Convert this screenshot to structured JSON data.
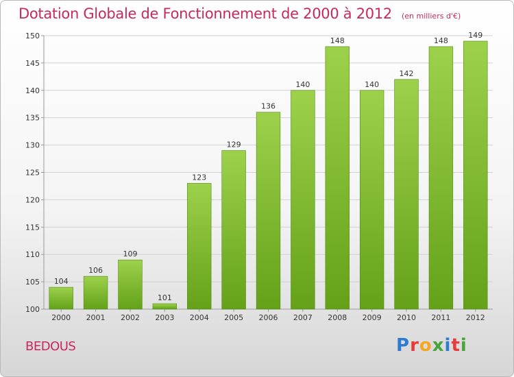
{
  "header": {
    "title": "Dotation Globale de Fonctionnement de 2000 à 2012",
    "unit": "(en milliers d'€)"
  },
  "footer": {
    "commune": "BEDOUS",
    "brand": {
      "text": "Proxiti",
      "letter_colors": [
        "#2f7bd2",
        "#e83c3c",
        "#f5a623",
        "#4aa33c",
        "#2f7bd2",
        "#e83c3c",
        "#4aa33c"
      ]
    }
  },
  "colors": {
    "bar_top": "#9dd14c",
    "bar_bottom": "#64a119",
    "bar_edge": "#4f8a12",
    "grid": "#d0d0d0",
    "axis": "#999999",
    "title": "#c8285e"
  },
  "chart_data": {
    "type": "bar",
    "title": "Dotation Globale de Fonctionnement de 2000 à 2012",
    "subtitle": "(en milliers d'€)",
    "categories": [
      "2000",
      "2001",
      "2002",
      "2003",
      "2004",
      "2005",
      "2006",
      "2007",
      "2008",
      "2009",
      "2010",
      "2011",
      "2012"
    ],
    "values": [
      104,
      106,
      109,
      101,
      123,
      129,
      136,
      140,
      148,
      140,
      142,
      148,
      149
    ],
    "ylim": [
      100,
      150
    ],
    "yticks": [
      100,
      105,
      110,
      115,
      120,
      125,
      130,
      135,
      140,
      145,
      150
    ],
    "grid": true,
    "legend": "none",
    "data_labels": true
  }
}
